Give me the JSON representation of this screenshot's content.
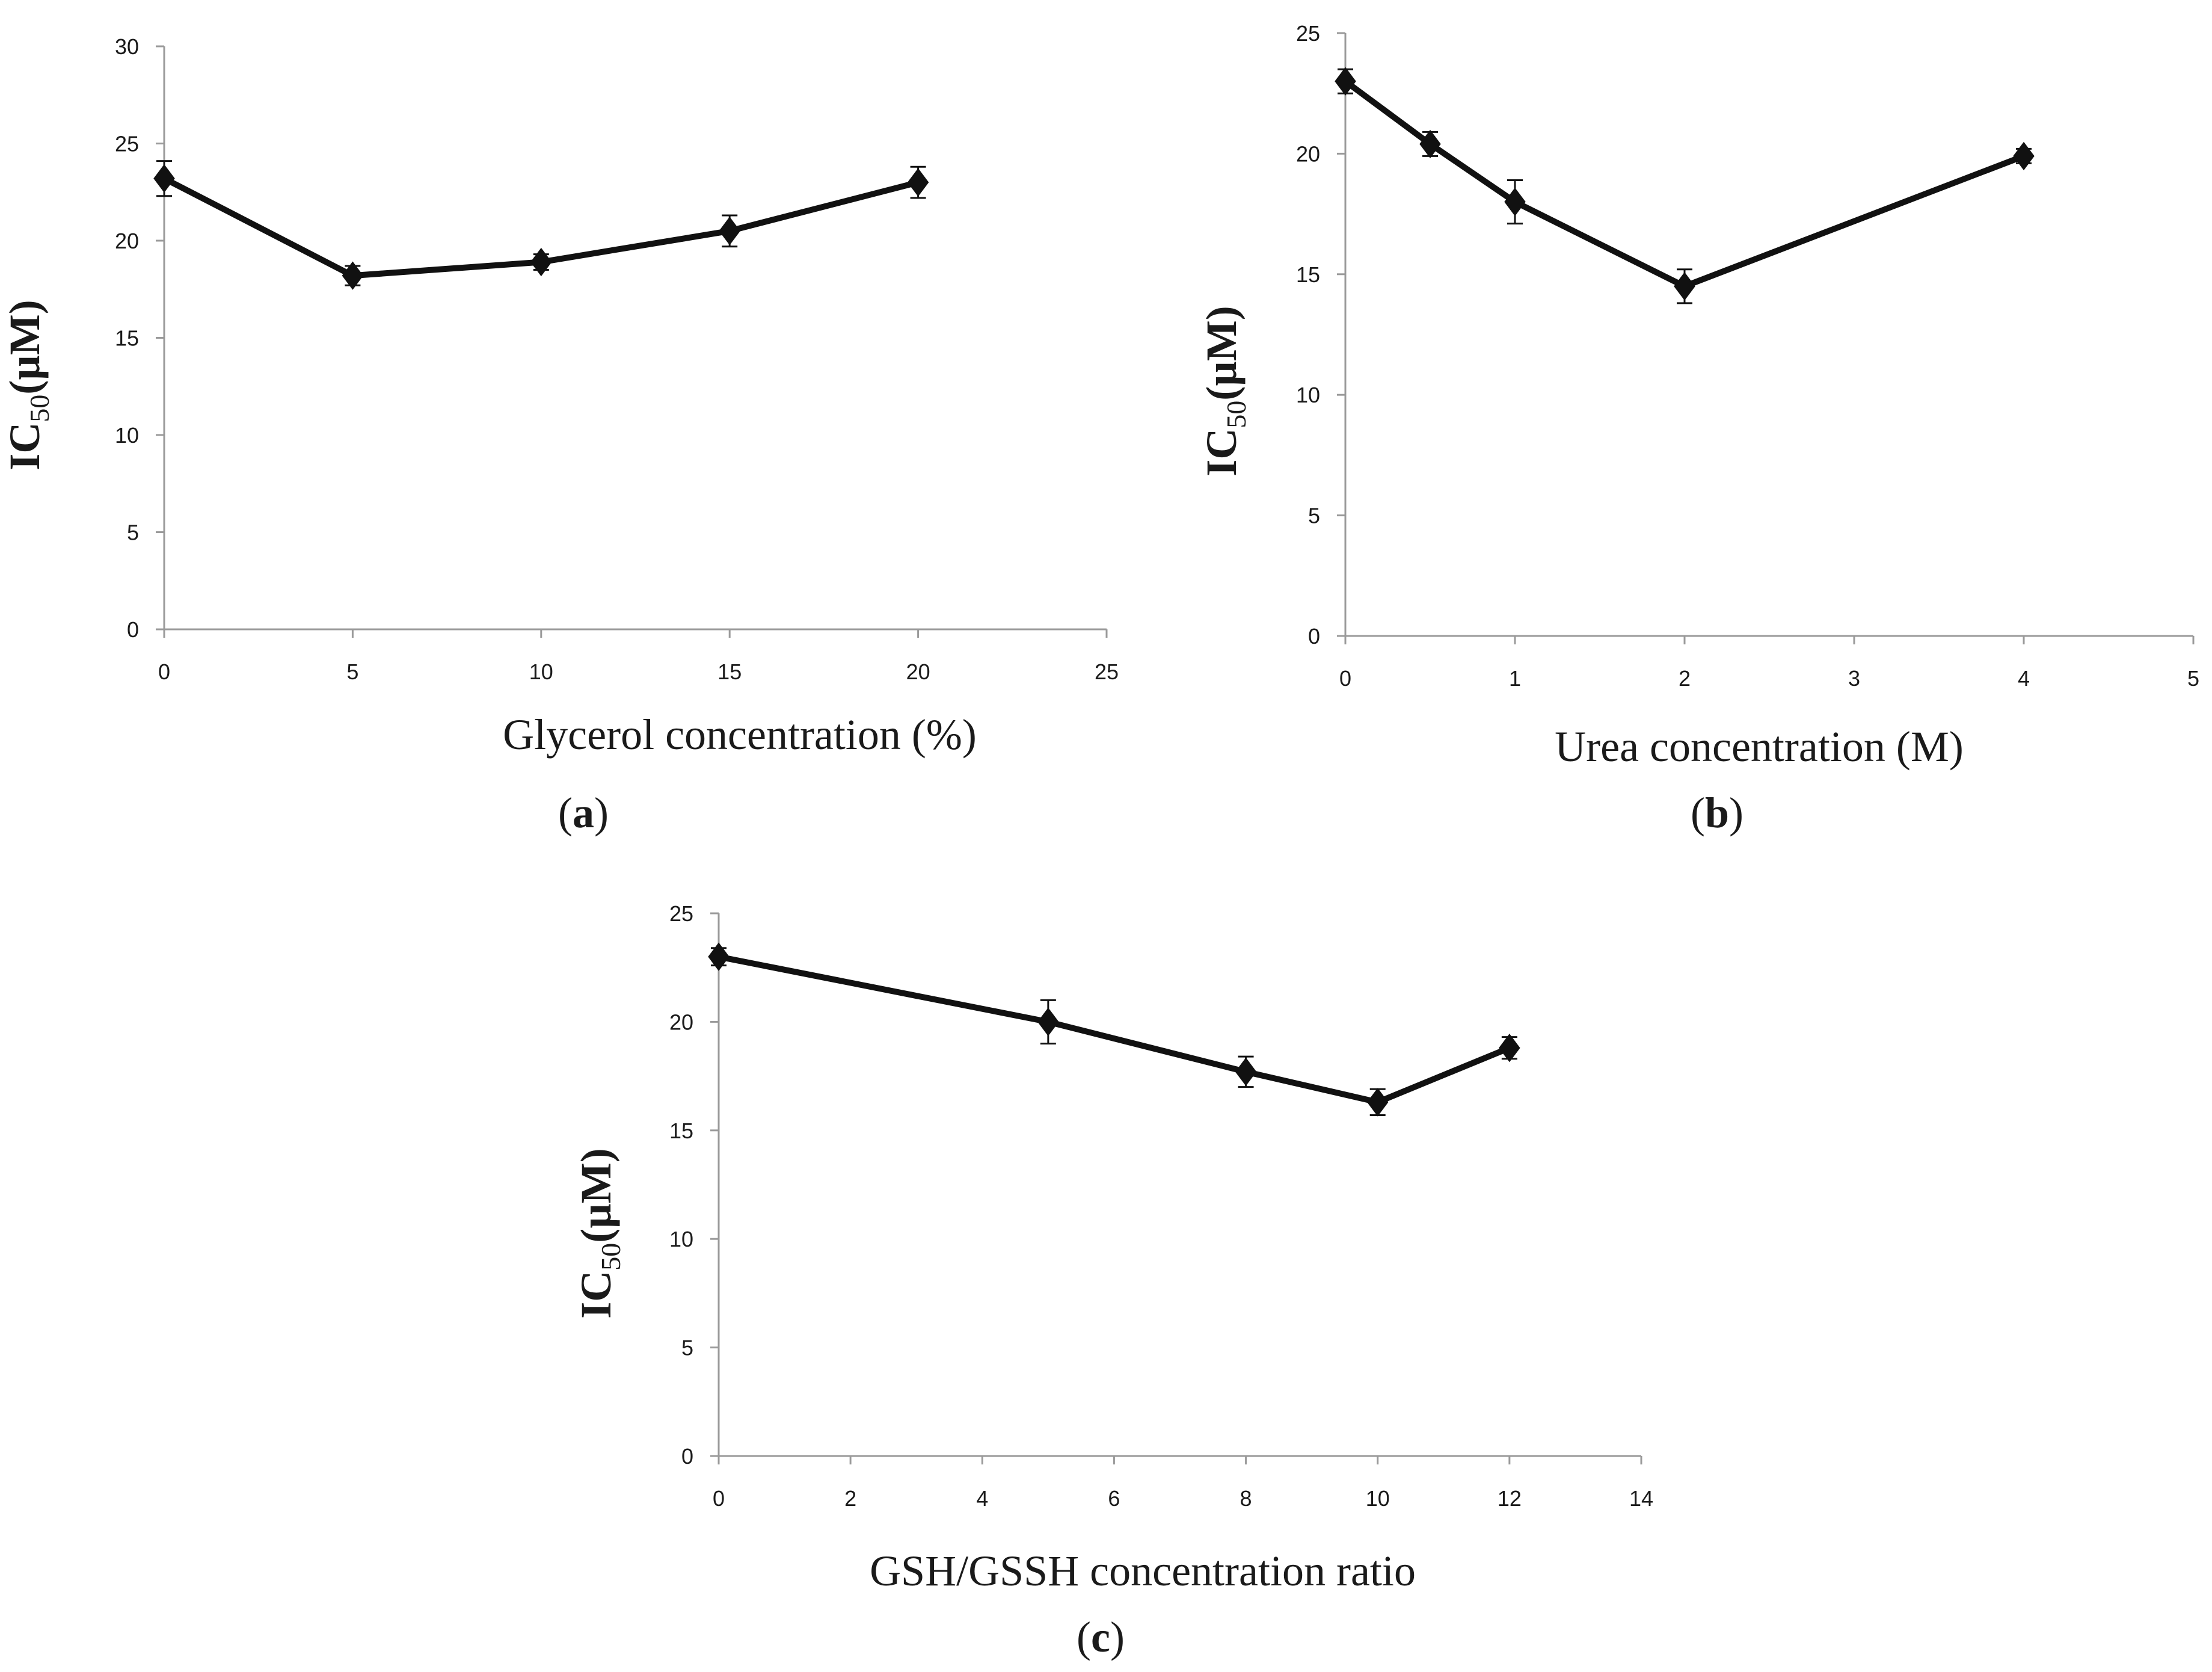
{
  "chart_data": [
    {
      "type": "line",
      "panel_label": "a",
      "xlabel": "Glycerol concentration (%)",
      "ylabel": {
        "main": "IC",
        "sub": "50",
        "unit": "(µM)"
      },
      "xlim": [
        0,
        25
      ],
      "ylim": [
        0,
        30
      ],
      "x_ticks": [
        0,
        5,
        10,
        15,
        20,
        25
      ],
      "y_ticks": [
        0,
        5,
        10,
        15,
        20,
        25,
        30
      ],
      "grid": false,
      "series": [
        {
          "name": "IC50",
          "x": [
            0,
            5,
            10,
            15,
            20
          ],
          "y": [
            23.2,
            18.2,
            18.9,
            20.5,
            23.0
          ],
          "error": [
            0.9,
            0.5,
            0.4,
            0.8,
            0.8
          ]
        }
      ]
    },
    {
      "type": "line",
      "panel_label": "b",
      "xlabel": "Urea concentration (M)",
      "ylabel": {
        "main": "IC",
        "sub": "50",
        "unit": "(µM)"
      },
      "xlim": [
        0,
        5
      ],
      "ylim": [
        0,
        25
      ],
      "x_ticks": [
        0,
        1,
        2,
        3,
        4,
        5
      ],
      "y_ticks": [
        0,
        5,
        10,
        15,
        20,
        25
      ],
      "grid": false,
      "series": [
        {
          "name": "IC50",
          "x": [
            0,
            0.5,
            1,
            2,
            4
          ],
          "y": [
            23.0,
            20.4,
            18.0,
            14.5,
            19.9
          ],
          "error": [
            0.5,
            0.5,
            0.9,
            0.7,
            0.3
          ]
        }
      ]
    },
    {
      "type": "line",
      "panel_label": "c",
      "xlabel": "GSH/GSSH concentration ratio",
      "ylabel": {
        "main": "IC",
        "sub": "50",
        "unit": "(µM)"
      },
      "xlim": [
        0,
        14
      ],
      "ylim": [
        0,
        25
      ],
      "x_ticks": [
        0,
        2,
        4,
        6,
        8,
        10,
        12,
        14
      ],
      "y_ticks": [
        0,
        5,
        10,
        15,
        20,
        25
      ],
      "grid": false,
      "series": [
        {
          "name": "IC50",
          "x": [
            0,
            5,
            8,
            10,
            12
          ],
          "y": [
            23.0,
            20.0,
            17.7,
            16.3,
            18.8
          ],
          "error": [
            0.4,
            1.0,
            0.7,
            0.6,
            0.5
          ]
        }
      ]
    }
  ],
  "colors": {
    "line": "#111111",
    "marker": "#111111",
    "axis": "#9a9a9a",
    "text": "#1a1a1a"
  }
}
